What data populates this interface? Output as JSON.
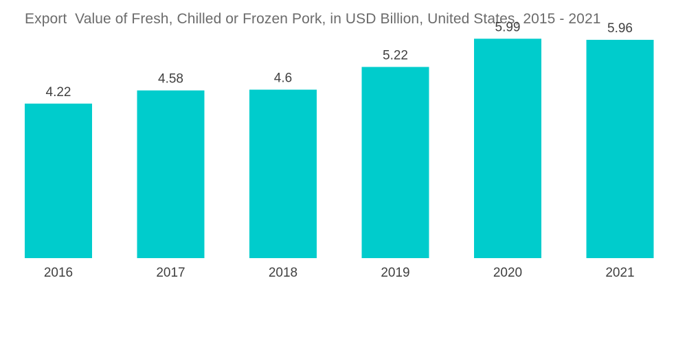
{
  "chart_data": {
    "type": "bar",
    "title": "Export  Value of Fresh, Chilled or Frozen Pork, in USD Billion, United States, 2015 - 2021",
    "xlabel": "",
    "ylabel": "",
    "categories": [
      "2016",
      "2017",
      "2018",
      "2019",
      "2020",
      "2021"
    ],
    "values": [
      4.22,
      4.58,
      4.6,
      5.22,
      5.99,
      5.96
    ],
    "value_labels": [
      "4.22",
      "4.58",
      "4.6",
      "5.22",
      "5.99",
      "5.96"
    ],
    "ylim": [
      0,
      6.78
    ],
    "grid": false,
    "legend": "none",
    "bar_color": "#00cccc"
  }
}
